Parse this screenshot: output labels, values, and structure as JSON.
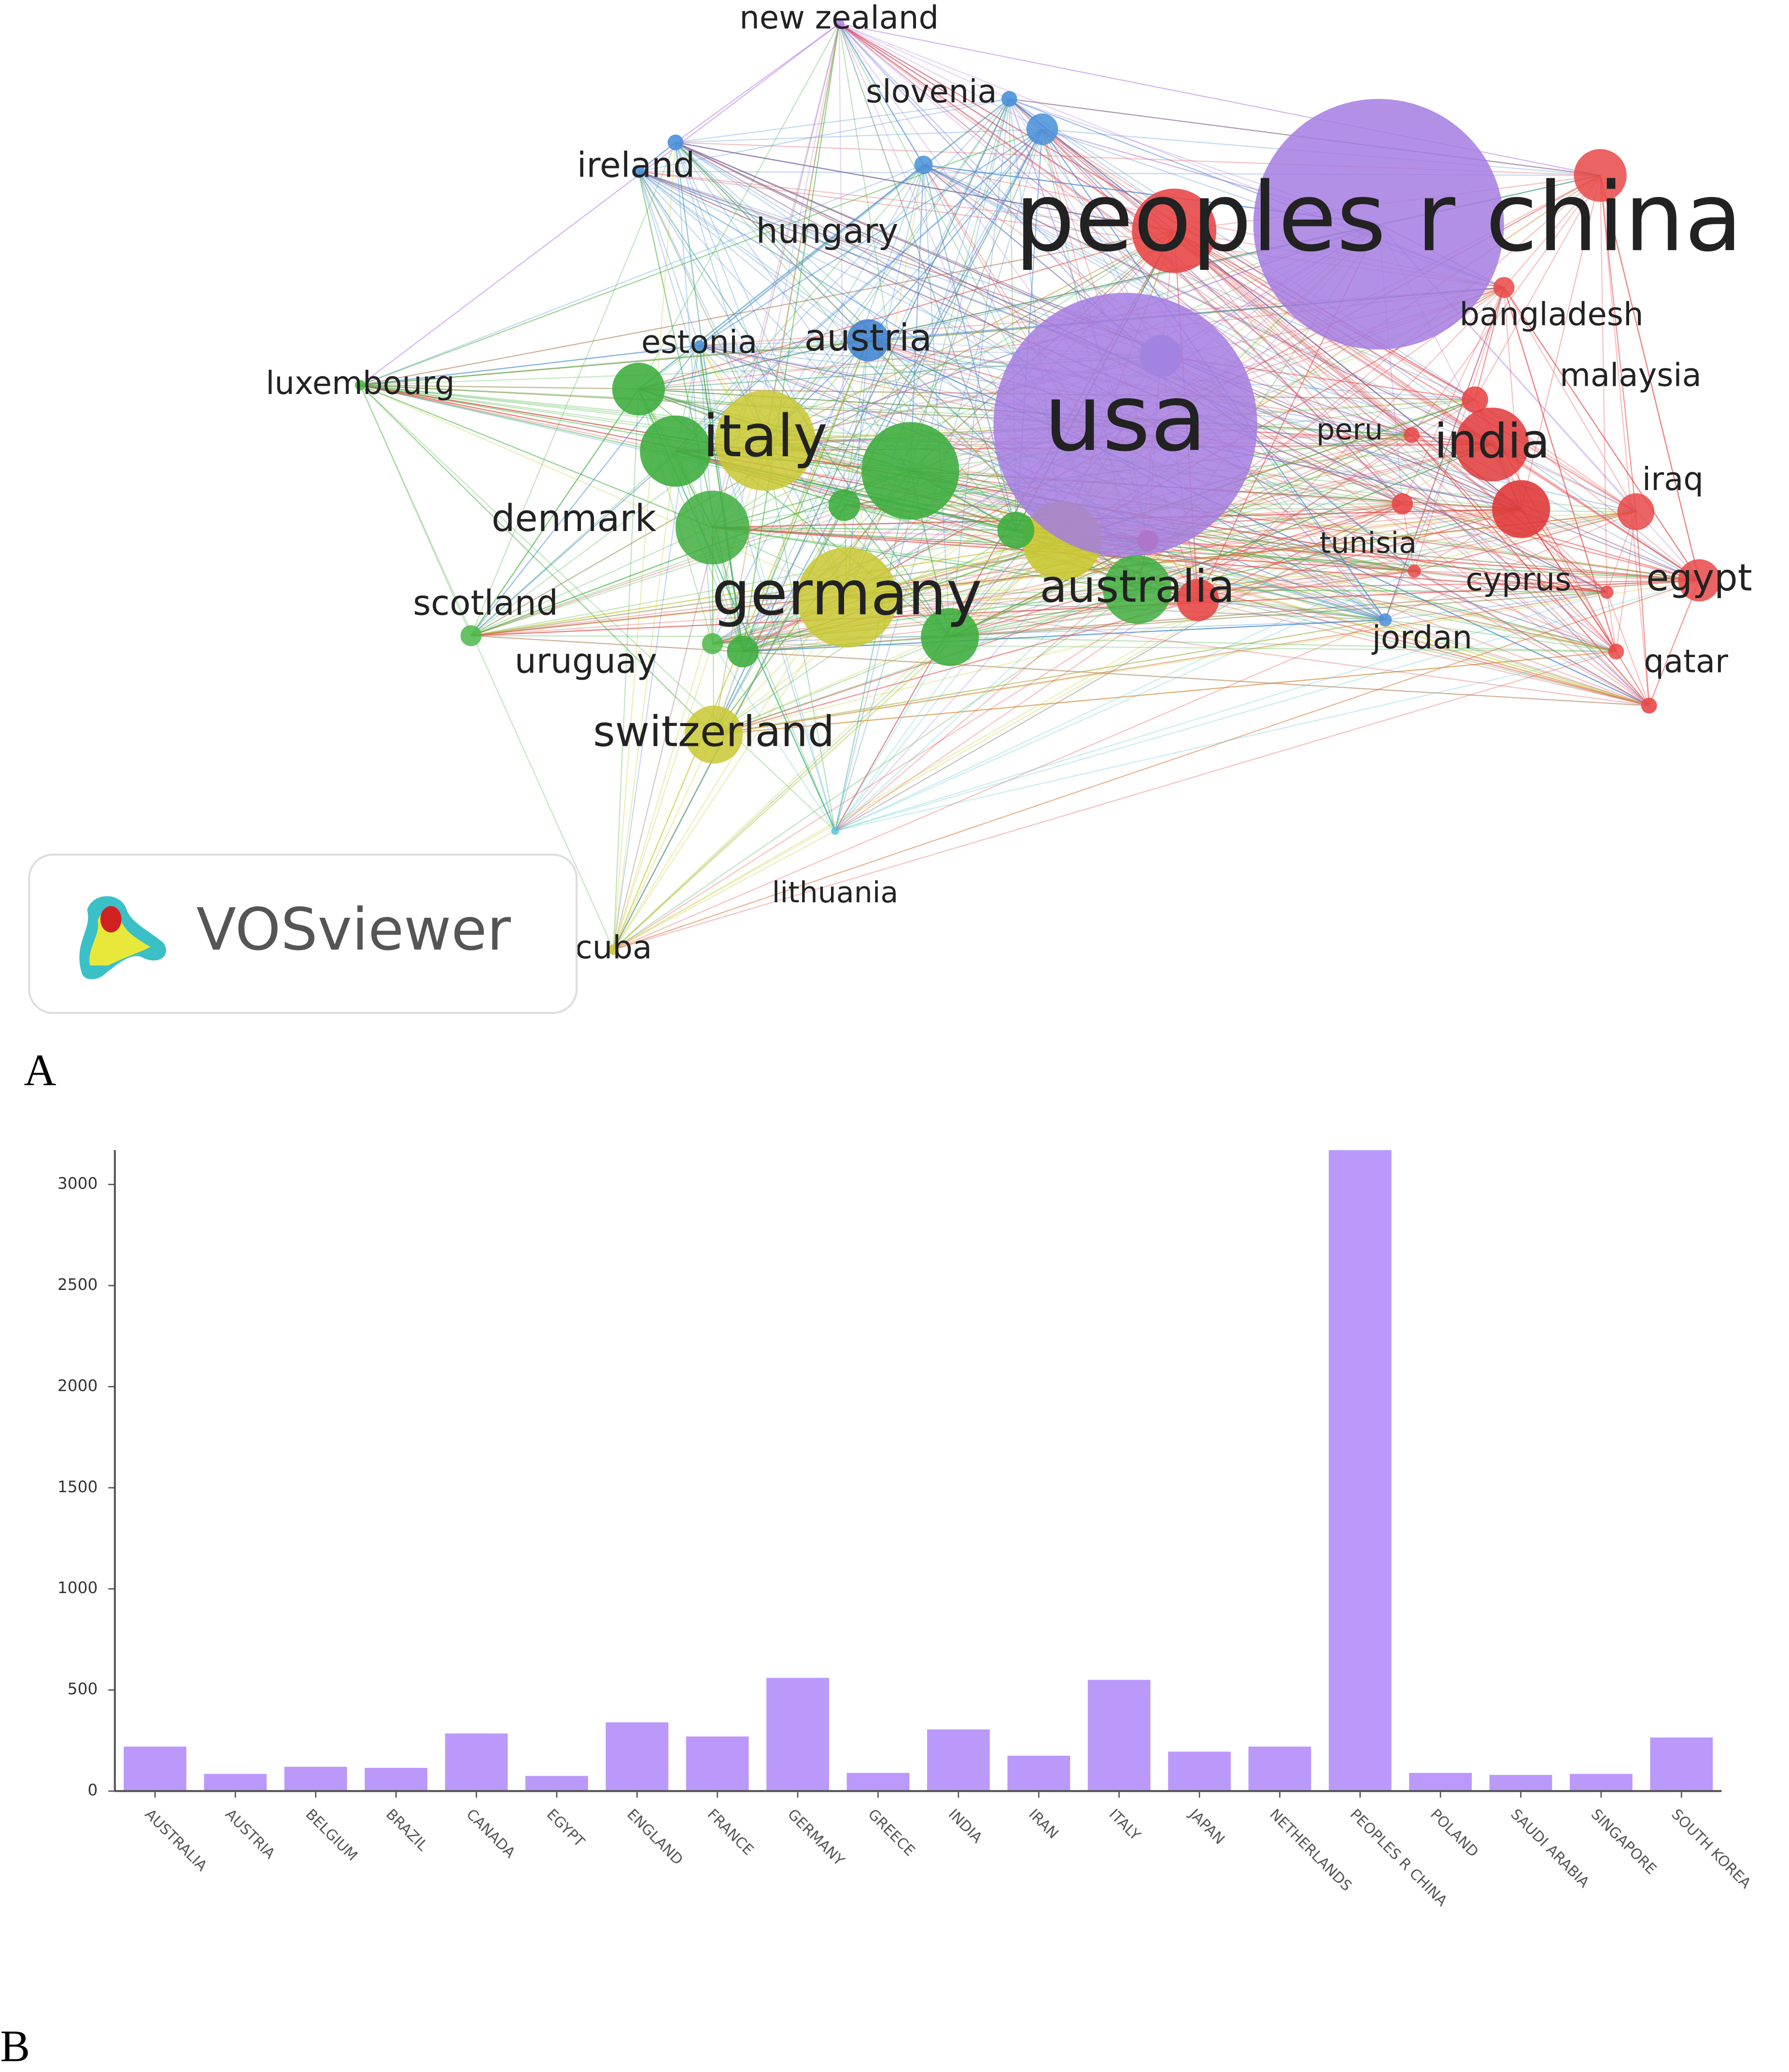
{
  "chart_data": [
    {
      "type": "network",
      "logo": "VOSviewer",
      "panel_label": "A",
      "nodes": [
        {
          "label": "new zealand",
          "color": "#b67ee8"
        },
        {
          "label": "slovenia",
          "color": "#4a90d9"
        },
        {
          "label": "ireland",
          "color": "#4a90d9"
        },
        {
          "label": "hungary",
          "color": "#4a90d9"
        },
        {
          "label": "peoples r china",
          "color": "#a57ce0"
        },
        {
          "label": "bangladesh",
          "color": "#e84848"
        },
        {
          "label": "malaysia",
          "color": "#e84848"
        },
        {
          "label": "estonia",
          "color": "#4a90d9"
        },
        {
          "label": "austria",
          "color": "#3c7fd0"
        },
        {
          "label": "luxembourg",
          "color": "#4cb848"
        },
        {
          "label": "italy",
          "color": "#c9c832"
        },
        {
          "label": "usa",
          "color": "#a57ce0"
        },
        {
          "label": "peru",
          "color": "#e84848"
        },
        {
          "label": "india",
          "color": "#e03a3a"
        },
        {
          "label": "iraq",
          "color": "#e84848"
        },
        {
          "label": "denmark",
          "color": "#3fae3f"
        },
        {
          "label": "tunisia",
          "color": "#e84848"
        },
        {
          "label": "cyprus",
          "color": "#e84848"
        },
        {
          "label": "egypt",
          "color": "#e84848"
        },
        {
          "label": "scotland",
          "color": "#4cb848"
        },
        {
          "label": "germany",
          "color": "#c9c832"
        },
        {
          "label": "australia",
          "color": "#3fae3f"
        },
        {
          "label": "jordan",
          "color": "#4a90d9"
        },
        {
          "label": "qatar",
          "color": "#e84848"
        },
        {
          "label": "uruguay",
          "color": "#4cb848"
        },
        {
          "label": "switzerland",
          "color": "#c9c832"
        },
        {
          "label": "lithuania",
          "color": "#58c8d8"
        },
        {
          "label": "cuba",
          "color": "#c9c832"
        }
      ]
    },
    {
      "type": "bar",
      "panel_label": "B",
      "color": "#bb99fa",
      "categories": [
        "AUSTRALIA",
        "AUSTRIA",
        "BELGIUM",
        "BRAZIL",
        "CANADA",
        "EGYPT",
        "ENGLAND",
        "FRANCE",
        "GERMANY",
        "GREECE",
        "INDIA",
        "IRAN",
        "ITALY",
        "JAPAN",
        "NETHERLANDS",
        "PEOPLES R CHINA",
        "POLAND",
        "SAUDI ARABIA",
        "SINGAPORE",
        "SOUTH KOREA"
      ],
      "values": [
        220,
        85,
        120,
        115,
        285,
        75,
        340,
        270,
        560,
        90,
        305,
        175,
        550,
        195,
        220,
        3170,
        90,
        80,
        85,
        265
      ],
      "ylim": [
        0,
        3170
      ],
      "yticks": [
        0,
        500,
        1000,
        1500,
        2000,
        2500,
        3000
      ]
    }
  ]
}
